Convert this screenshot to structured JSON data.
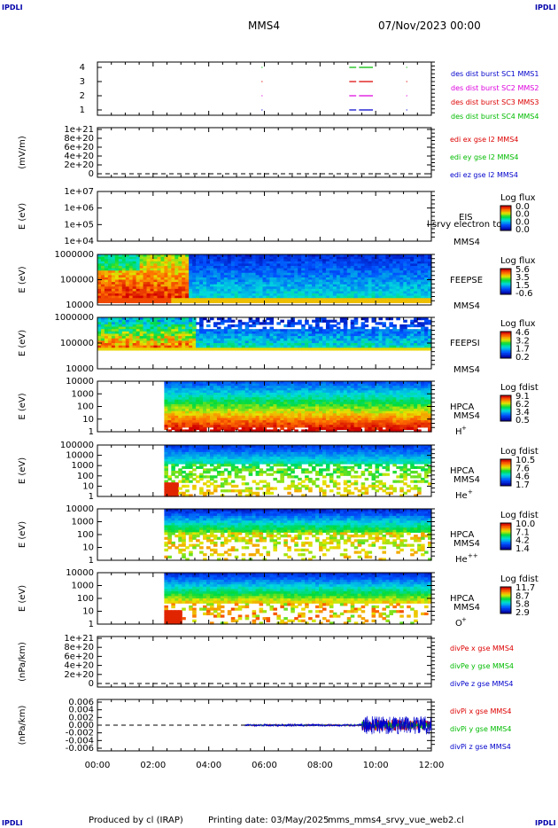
{
  "corner_label": "IPDLI",
  "header": {
    "spacecraft": "MMS4",
    "date": "07/Nov/2023 00:00"
  },
  "footer": {
    "produced_by": "Produced by cl (IRAP)",
    "printing_date": "Printing date: 03/May/2025",
    "script": "mms_mms4_srvy_vue_web2.cl"
  },
  "time_axis": {
    "ticks": [
      "00:00",
      "02:00",
      "04:00",
      "06:00",
      "08:00",
      "10:00",
      "12:00"
    ],
    "range_hours": [
      0,
      12
    ]
  },
  "colors": {
    "red": "#dd0000",
    "green": "#00bb00",
    "blue": "#0000cc",
    "magenta": "#dd00dd"
  },
  "chart_data": [
    {
      "type": "scatter",
      "id": "burst",
      "yticks": [
        "4",
        "3",
        "2",
        "1"
      ],
      "legend": [
        {
          "text": "des dist burst SC1 MMS1",
          "color": "#0000cc"
        },
        {
          "text": "des dist burst SC2 MMS2",
          "color": "#dd00dd"
        },
        {
          "text": "des dist burst SC3 MMS3",
          "color": "#dd0000"
        },
        {
          "text": "des dist burst SC4 MMS4",
          "color": "#00bb00"
        }
      ],
      "series": [
        {
          "sc": 4,
          "segments_hours": [
            [
              5.9,
              5.92
            ],
            [
              9.05,
              9.3
            ],
            [
              9.4,
              9.9
            ],
            [
              11.1,
              11.12
            ]
          ]
        },
        {
          "sc": 3,
          "segments_hours": [
            [
              5.9,
              5.92
            ],
            [
              9.05,
              9.3
            ],
            [
              9.4,
              9.9
            ],
            [
              11.1,
              11.12
            ]
          ]
        },
        {
          "sc": 2,
          "segments_hours": [
            [
              5.9,
              5.92
            ],
            [
              9.05,
              9.3
            ],
            [
              9.4,
              9.9
            ],
            [
              11.1,
              11.12
            ]
          ]
        },
        {
          "sc": 1,
          "segments_hours": [
            [
              5.9,
              5.92
            ],
            [
              9.05,
              9.3
            ],
            [
              9.4,
              9.9
            ],
            [
              11.1,
              11.12
            ]
          ]
        }
      ]
    },
    {
      "type": "line",
      "id": "edi",
      "ylabel": "(mV/m)",
      "yticks": [
        "1e+21",
        "8e+20",
        "6e+20",
        "4e+20",
        "2e+20",
        "0"
      ],
      "legend": [
        {
          "text": "edi ex gse l2 MMS4",
          "color": "#dd0000"
        },
        {
          "text": "edi ey gse l2 MMS4",
          "color": "#00bb00"
        },
        {
          "text": "edi ez gse l2 MMS4",
          "color": "#0000cc"
        }
      ]
    },
    {
      "type": "heatmap",
      "id": "eis",
      "ylabel": "E (eV)",
      "yticks": [
        "1e+07",
        "1e+06",
        "1e+05",
        "1e+04"
      ],
      "instrument": "EIS",
      "spacecraft": "MMS4",
      "overlay_text": "l srvy electron to",
      "colorbar": {
        "title": "Log flux",
        "ticks": [
          "0.0",
          "0.0",
          "0.0",
          "0.0"
        ]
      }
    },
    {
      "type": "heatmap",
      "id": "feepse",
      "ylabel": "E (eV)",
      "yticks": [
        "1000000",
        "100000",
        "10000"
      ],
      "instrument": "FEEPSE",
      "spacecraft": "MMS4",
      "colorbar": {
        "title": "Log flux",
        "ticks": [
          "5.6",
          "3.5",
          "1.5",
          "-0.6"
        ]
      }
    },
    {
      "type": "heatmap",
      "id": "feepsi",
      "ylabel": "E (eV)",
      "yticks": [
        "1000000",
        "100000",
        "10000"
      ],
      "instrument": "FEEPSI",
      "spacecraft": "MMS4",
      "colorbar": {
        "title": "Log flux",
        "ticks": [
          "4.6",
          "3.2",
          "1.7",
          "0.2"
        ]
      }
    },
    {
      "type": "heatmap",
      "id": "hpca_h",
      "ylabel": "E (eV)",
      "yticks": [
        "10000",
        "1000",
        "100",
        "10",
        "1"
      ],
      "instrument": "HPCA",
      "spacecraft": "MMS4",
      "species": "H",
      "charge": "+",
      "colorbar": {
        "title": "Log fdist",
        "ticks": [
          "9.1",
          "6.2",
          "3.4",
          "0.5"
        ]
      }
    },
    {
      "type": "heatmap",
      "id": "hpca_he",
      "ylabel": "E (eV)",
      "yticks": [
        "100000",
        "10000",
        "1000",
        "100",
        "10",
        "1"
      ],
      "instrument": "HPCA",
      "spacecraft": "MMS4",
      "species": "He",
      "charge": "+",
      "colorbar": {
        "title": "Log fdist",
        "ticks": [
          "10.5",
          "7.6",
          "4.6",
          "1.7"
        ]
      }
    },
    {
      "type": "heatmap",
      "id": "hpca_hepp",
      "ylabel": "E (eV)",
      "yticks": [
        "10000",
        "1000",
        "100",
        "10",
        "1"
      ],
      "instrument": "HPCA",
      "spacecraft": "MMS4",
      "species": "He",
      "charge": "++",
      "colorbar": {
        "title": "Log fdist",
        "ticks": [
          "10.0",
          "7.1",
          "4.2",
          "1.4"
        ]
      }
    },
    {
      "type": "heatmap",
      "id": "hpca_o",
      "ylabel": "E (eV)",
      "yticks": [
        "10000",
        "1000",
        "100",
        "10",
        "1"
      ],
      "instrument": "HPCA",
      "spacecraft": "MMS4",
      "species": "O",
      "charge": "+",
      "colorbar": {
        "title": "Log fdist",
        "ticks": [
          "11.7",
          "8.7",
          "5.8",
          "2.9"
        ]
      }
    },
    {
      "type": "line",
      "id": "divpe",
      "ylabel": "(nPa/km)",
      "yticks": [
        "1e+21",
        "8e+20",
        "6e+20",
        "4e+20",
        "2e+20",
        "0"
      ],
      "legend": [
        {
          "text": "divPe x gse MMS4",
          "color": "#dd0000"
        },
        {
          "text": "divPe y gse MMS4",
          "color": "#00bb00"
        },
        {
          "text": "divPe z gse MMS4",
          "color": "#0000cc"
        }
      ]
    },
    {
      "type": "line",
      "id": "divpi",
      "ylabel": "(nPa/km)",
      "yticks": [
        "0.006",
        "0.004",
        "0.002",
        "0.000",
        "-0.002",
        "-0.004",
        "-0.006"
      ],
      "ylim": [
        -0.007,
        0.007
      ],
      "legend": [
        {
          "text": "divPi x gse MMS4",
          "color": "#dd0000"
        },
        {
          "text": "divPi y gse MMS4",
          "color": "#00bb00"
        },
        {
          "text": "divPi z gse MMS4",
          "color": "#0000cc"
        }
      ]
    }
  ]
}
